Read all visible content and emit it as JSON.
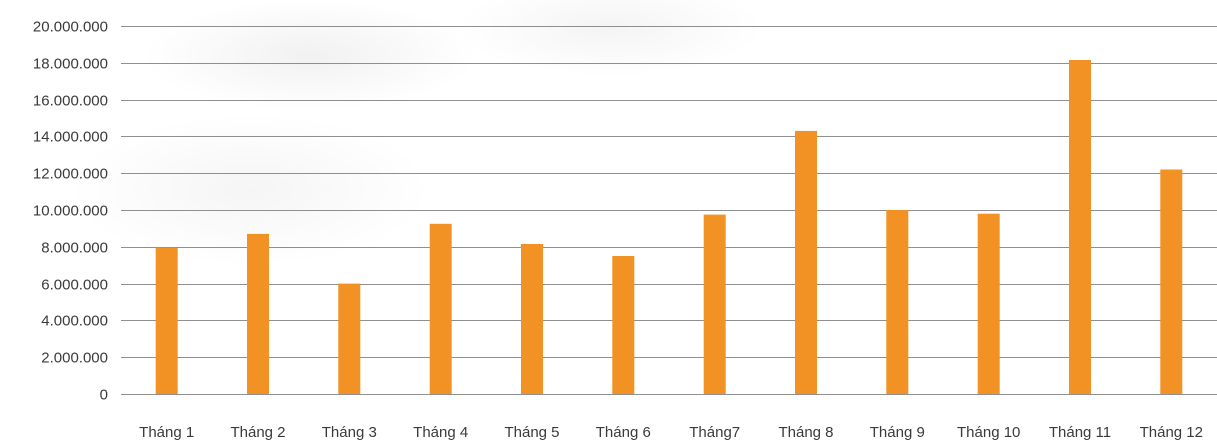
{
  "chart_data": {
    "type": "bar",
    "title": "",
    "xlabel": "",
    "ylabel": "",
    "categories": [
      "Tháng 1",
      "Tháng 2",
      "Tháng 3",
      "Tháng 4",
      "Tháng 5",
      "Tháng 6",
      "Tháng7",
      "Tháng 8",
      "Tháng 9",
      "Tháng 10",
      "Tháng 11",
      "Tháng 12"
    ],
    "values": [
      7950000,
      8700000,
      6000000,
      9250000,
      8150000,
      7500000,
      9750000,
      14300000,
      10000000,
      9800000,
      18150000,
      12200000
    ],
    "ylim": [
      0,
      20000000
    ],
    "y_ticks": [
      0,
      2000000,
      4000000,
      6000000,
      8000000,
      10000000,
      12000000,
      14000000,
      16000000,
      18000000,
      20000000
    ],
    "y_tick_labels": [
      "0",
      "2.000.000",
      "4.000.000",
      "6.000.000",
      "8.000.000",
      "10.000.000",
      "12.000.000",
      "14.000.000",
      "16.000.000",
      "18.000.000",
      "20.000.000"
    ],
    "grid": true,
    "legend": "none",
    "bar_color": "#f39224",
    "grid_color": "#8f8f8f",
    "text_color": "#3a3a3a"
  }
}
